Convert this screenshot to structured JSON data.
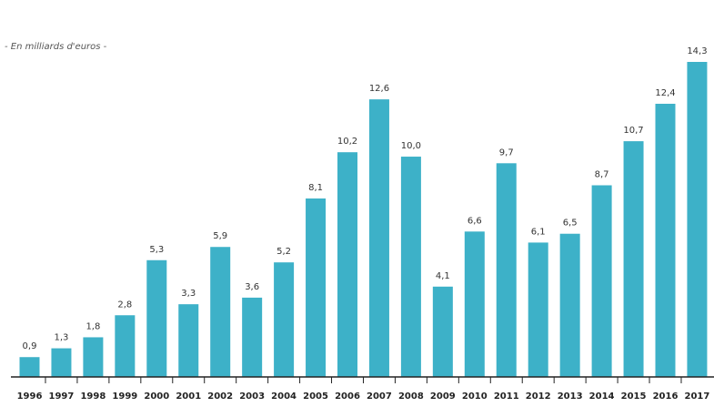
{
  "chart_data": {
    "type": "bar",
    "title": "",
    "subtitle": "-  En milliards d'euros  -",
    "xlabel": "",
    "ylabel": "",
    "grid": false,
    "legend": "none",
    "bar_color": "#3DB1C8",
    "ylim": [
      0,
      14.3
    ],
    "categories": [
      "1996",
      "1997",
      "1998",
      "1999",
      "2000",
      "2001",
      "2002",
      "2003",
      "2004",
      "2005",
      "2006",
      "2007",
      "2008",
      "2009",
      "2010",
      "2011",
      "2012",
      "2013",
      "2014",
      "2015",
      "2016",
      "2017"
    ],
    "values": [
      0.9,
      1.3,
      1.8,
      2.8,
      5.3,
      3.3,
      5.9,
      3.6,
      5.2,
      8.1,
      10.2,
      12.6,
      10.0,
      4.1,
      6.6,
      9.7,
      6.1,
      6.5,
      8.7,
      10.7,
      12.4,
      14.3
    ],
    "value_labels": [
      "0,9",
      "1,3",
      "1,8",
      "2,8",
      "5,3",
      "3,3",
      "5,9",
      "3,6",
      "5,2",
      "8,1",
      "10,2",
      "12,6",
      "10,0",
      "4,1",
      "6,6",
      "9,7",
      "6,1",
      "6,5",
      "8,7",
      "10,7",
      "12,4",
      "14,3"
    ]
  }
}
